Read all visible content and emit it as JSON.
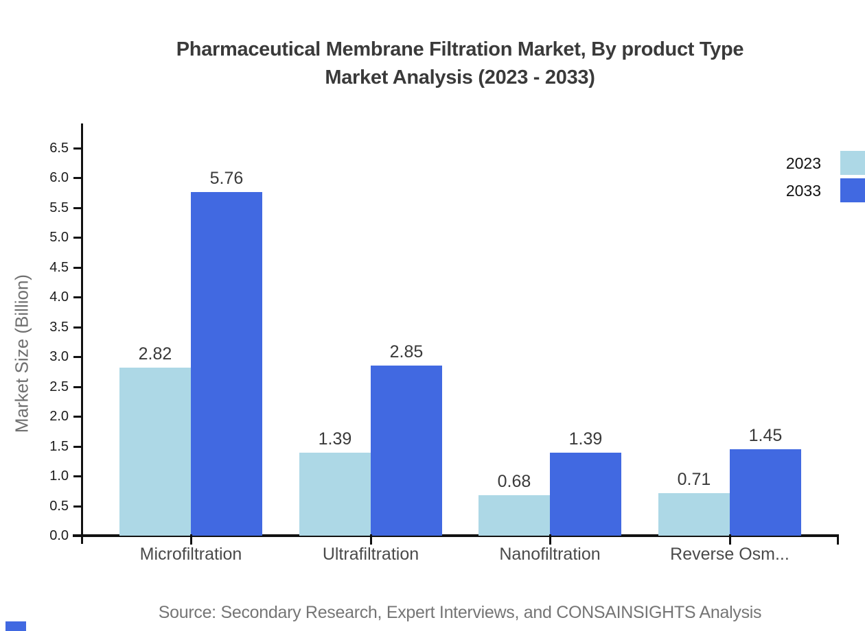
{
  "title": {
    "line1": "Pharmaceutical Membrane Filtration Market, By product Type",
    "line2": "Market Analysis (2023 - 2033)"
  },
  "source": "Source: Secondary Research, Expert Interviews, and CONSAINSIGHTS Analysis",
  "legend": {
    "position": "top-right",
    "items": [
      {
        "label": "2023",
        "color": "#ADD8E6"
      },
      {
        "label": "2033",
        "color": "#4169E1"
      }
    ]
  },
  "chart_data": {
    "type": "bar",
    "title": "Pharmaceutical Membrane Filtration Market, By product Type Market Analysis (2023 - 2033)",
    "categories": [
      "Microfiltration",
      "Ultrafiltration",
      "Nanofiltration",
      "Reverse Osm..."
    ],
    "series": [
      {
        "name": "2023",
        "color": "#ADD8E6",
        "values": [
          2.82,
          1.39,
          0.68,
          0.71
        ]
      },
      {
        "name": "2033",
        "color": "#4169E1",
        "values": [
          5.76,
          2.85,
          1.39,
          1.45
        ]
      }
    ],
    "xlabel": "",
    "ylabel": "Market Size (Billion)",
    "ylim": [
      0,
      6.5
    ],
    "ytick_step": 0.5,
    "ytick_labels": [
      "0.0",
      "0.5",
      "1.0",
      "1.5",
      "2.0",
      "2.5",
      "3.0",
      "3.5",
      "4.0",
      "4.5",
      "5.0",
      "5.5",
      "6.0",
      "6.5"
    ],
    "grid": false,
    "legend_position": "top-right",
    "value_labels": true,
    "accent_color": "#4169E1"
  }
}
